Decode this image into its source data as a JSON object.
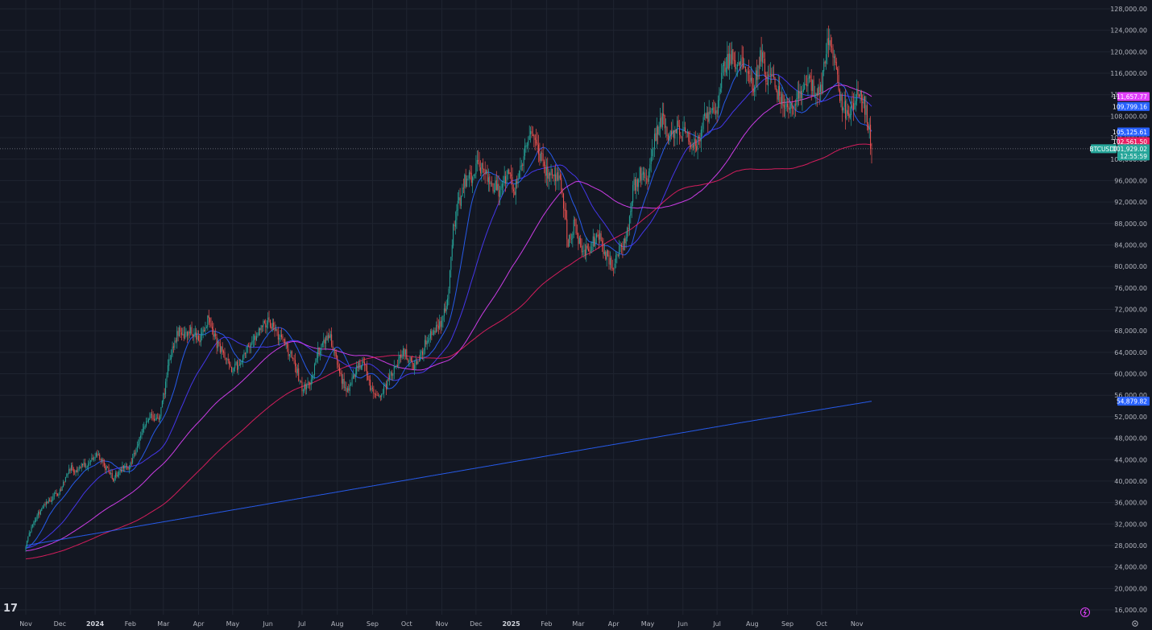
{
  "chart_data": {
    "type": "candlestick",
    "symbol": "BTCUSDT",
    "logo": "17",
    "y_axis": {
      "min": 16000,
      "max": 128000,
      "ticks": [
        "128,000.00",
        "124,000.00",
        "120,000.00",
        "116,000.00",
        "112,000.00",
        "108,000.00",
        "104,000.00",
        "100,000.00",
        "96,000.00",
        "92,000.00",
        "88,000.00",
        "84,000.00",
        "80,000.00",
        "76,000.00",
        "72,000.00",
        "68,000.00",
        "64,000.00",
        "60,000.00",
        "56,000.00",
        "52,000.00",
        "48,000.00",
        "44,000.00",
        "40,000.00",
        "36,000.00",
        "32,000.00",
        "28,000.00",
        "24,000.00",
        "20,000.00",
        "16,000.00"
      ]
    },
    "x_axis": {
      "labels": [
        {
          "text": "Nov",
          "day": 0,
          "bold": false
        },
        {
          "text": "Dec",
          "day": 30,
          "bold": false
        },
        {
          "text": "2024",
          "day": 61,
          "bold": true
        },
        {
          "text": "Feb",
          "day": 92,
          "bold": false
        },
        {
          "text": "Mar",
          "day": 121,
          "bold": false
        },
        {
          "text": "Apr",
          "day": 152,
          "bold": false
        },
        {
          "text": "May",
          "day": 182,
          "bold": false
        },
        {
          "text": "Jun",
          "day": 213,
          "bold": false
        },
        {
          "text": "Jul",
          "day": 243,
          "bold": false
        },
        {
          "text": "Aug",
          "day": 274,
          "bold": false
        },
        {
          "text": "Sep",
          "day": 305,
          "bold": false
        },
        {
          "text": "Oct",
          "day": 335,
          "bold": false
        },
        {
          "text": "Nov",
          "day": 366,
          "bold": false
        },
        {
          "text": "Dec",
          "day": 396,
          "bold": false
        },
        {
          "text": "2025",
          "day": 427,
          "bold": true
        },
        {
          "text": "Feb",
          "day": 458,
          "bold": false
        },
        {
          "text": "Mar",
          "day": 486,
          "bold": false
        },
        {
          "text": "Apr",
          "day": 517,
          "bold": false
        },
        {
          "text": "May",
          "day": 547,
          "bold": false
        },
        {
          "text": "Jun",
          "day": 578,
          "bold": false
        },
        {
          "text": "Jul",
          "day": 608,
          "bold": false
        },
        {
          "text": "Aug",
          "day": 639,
          "bold": false
        },
        {
          "text": "Sep",
          "day": 670,
          "bold": false
        },
        {
          "text": "Oct",
          "day": 700,
          "bold": false
        },
        {
          "text": "Nov",
          "day": 731,
          "bold": false
        }
      ]
    },
    "price_anchors": [
      [
        0,
        28000
      ],
      [
        8,
        33000
      ],
      [
        18,
        36000
      ],
      [
        30,
        38000
      ],
      [
        38,
        42500
      ],
      [
        45,
        42000
      ],
      [
        55,
        43500
      ],
      [
        61,
        45000
      ],
      [
        66,
        44000
      ],
      [
        72,
        42000
      ],
      [
        77,
        40500
      ],
      [
        85,
        42500
      ],
      [
        92,
        43000
      ],
      [
        100,
        48000
      ],
      [
        110,
        52000
      ],
      [
        118,
        52000
      ],
      [
        126,
        62000
      ],
      [
        134,
        68000
      ],
      [
        140,
        67000
      ],
      [
        146,
        68000
      ],
      [
        152,
        66000
      ],
      [
        160,
        70000
      ],
      [
        166,
        66500
      ],
      [
        175,
        63000
      ],
      [
        182,
        61000
      ],
      [
        190,
        62000
      ],
      [
        198,
        66000
      ],
      [
        205,
        68000
      ],
      [
        213,
        70000
      ],
      [
        220,
        67500
      ],
      [
        228,
        65500
      ],
      [
        236,
        62000
      ],
      [
        243,
        57500
      ],
      [
        250,
        58000
      ],
      [
        257,
        64000
      ],
      [
        263,
        66500
      ],
      [
        268,
        67000
      ],
      [
        274,
        62000
      ],
      [
        282,
        56000
      ],
      [
        289,
        60000
      ],
      [
        297,
        63000
      ],
      [
        303,
        57000
      ],
      [
        310,
        55500
      ],
      [
        317,
        58000
      ],
      [
        324,
        61000
      ],
      [
        332,
        64500
      ],
      [
        340,
        61500
      ],
      [
        346,
        62500
      ],
      [
        353,
        67000
      ],
      [
        360,
        68500
      ],
      [
        366,
        70000
      ],
      [
        371,
        74000
      ],
      [
        376,
        87000
      ],
      [
        380,
        91000
      ],
      [
        386,
        96000
      ],
      [
        392,
        96500
      ],
      [
        398,
        99000
      ],
      [
        403,
        98000
      ],
      [
        410,
        95500
      ],
      [
        417,
        94000
      ],
      [
        424,
        98000
      ],
      [
        430,
        94500
      ],
      [
        437,
        100000
      ],
      [
        444,
        104500
      ],
      [
        450,
        102500
      ],
      [
        457,
        97500
      ],
      [
        463,
        98000
      ],
      [
        470,
        96000
      ],
      [
        477,
        84500
      ],
      [
        483,
        88000
      ],
      [
        490,
        82000
      ],
      [
        497,
        84000
      ],
      [
        504,
        86000
      ],
      [
        510,
        82000
      ],
      [
        517,
        80000
      ],
      [
        522,
        83000
      ],
      [
        528,
        84500
      ],
      [
        534,
        94500
      ],
      [
        540,
        97000
      ],
      [
        547,
        96000
      ],
      [
        553,
        104000
      ],
      [
        560,
        107000
      ],
      [
        566,
        104000
      ],
      [
        573,
        106000
      ],
      [
        578,
        105500
      ],
      [
        584,
        104000
      ],
      [
        590,
        102000
      ],
      [
        596,
        107500
      ],
      [
        602,
        108500
      ],
      [
        608,
        109000
      ],
      [
        614,
        117500
      ],
      [
        620,
        119000
      ],
      [
        628,
        118000
      ],
      [
        634,
        116000
      ],
      [
        640,
        114000
      ],
      [
        647,
        119500
      ],
      [
        652,
        115000
      ],
      [
        658,
        114000
      ],
      [
        664,
        111000
      ],
      [
        670,
        109000
      ],
      [
        677,
        111500
      ],
      [
        684,
        113500
      ],
      [
        690,
        115000
      ],
      [
        696,
        111000
      ],
      [
        700,
        114000
      ],
      [
        706,
        123000
      ],
      [
        711,
        120000
      ],
      [
        716,
        111000
      ],
      [
        721,
        109000
      ],
      [
        727,
        109500
      ],
      [
        734,
        113000
      ],
      [
        740,
        108000
      ],
      [
        744,
        101900
      ]
    ],
    "moving_averages": [
      {
        "color": "#e040fb",
        "label": "111,657.77",
        "value": 111657.77
      },
      {
        "color": "#2962ff",
        "label": "109,799.16",
        "value": 109799.16
      },
      {
        "color": "#2962ff",
        "label": "105,125.61",
        "value": 105125.61
      },
      {
        "color": "#e91e63",
        "label": "102,561.50",
        "value": 102561.5
      },
      {
        "color": "#2962ff",
        "label": "54,879.82",
        "value": 54879.82
      }
    ],
    "last_price": {
      "symbol_label": "BTCUSDT",
      "value": 101929.02,
      "label": "101,929.02",
      "countdown": "12:55:59"
    },
    "colors": {
      "up": "#26a69a",
      "down": "#ef5350",
      "background": "#131722",
      "grid": "#1f2430"
    }
  }
}
